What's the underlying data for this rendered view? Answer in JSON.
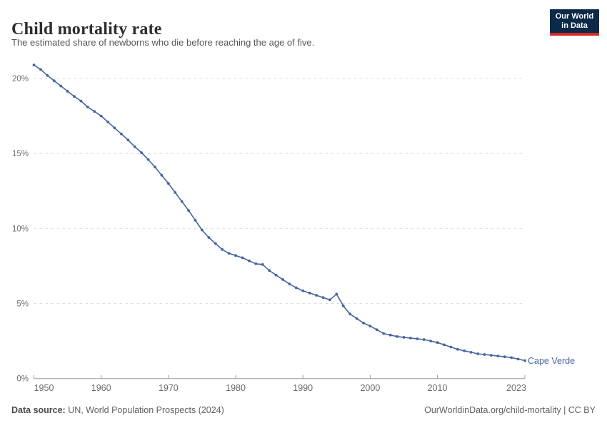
{
  "header": {
    "title": "Child mortality rate",
    "subtitle": "The estimated share of newborns who die before reaching the age of five.",
    "logo": {
      "line1": "Our World",
      "line2": "in Data",
      "bg_color": "#0b2948",
      "accent_color": "#d52b28"
    }
  },
  "footer": {
    "source_label": "Data source:",
    "source_text": " UN, World Population Prospects (2024)",
    "citation": "OurWorldinData.org/child-mortality | CC BY"
  },
  "chart_data": {
    "type": "line",
    "title": "Child mortality rate",
    "subtitle": "The estimated share of newborns who die before reaching the age of five.",
    "entity_label": "Cape Verde",
    "unit": "%",
    "xlabel": "",
    "ylabel": "",
    "xlim": [
      1950,
      2023
    ],
    "ylim": [
      0,
      21
    ],
    "grid": "horizontal-dashed",
    "legend_position": "end-of-line",
    "line_color": "#4565A0",
    "marker": "circle",
    "y_ticks": [
      {
        "value": 0,
        "label": "0%"
      },
      {
        "value": 5,
        "label": "5%"
      },
      {
        "value": 10,
        "label": "10%"
      },
      {
        "value": 15,
        "label": "15%"
      },
      {
        "value": 20,
        "label": "20%"
      }
    ],
    "x_ticks": [
      {
        "year": 1950,
        "label": "1950"
      },
      {
        "year": 1960,
        "label": "1960"
      },
      {
        "year": 1970,
        "label": "1970"
      },
      {
        "year": 1980,
        "label": "1980"
      },
      {
        "year": 1990,
        "label": "1990"
      },
      {
        "year": 2000,
        "label": "2000"
      },
      {
        "year": 2010,
        "label": "2010"
      },
      {
        "year": 2023,
        "label": "2023"
      }
    ],
    "series": [
      {
        "name": "Cape Verde",
        "color": "#4565A0",
        "years": [
          1950,
          1951,
          1952,
          1953,
          1954,
          1955,
          1956,
          1957,
          1958,
          1959,
          1960,
          1961,
          1962,
          1963,
          1964,
          1965,
          1966,
          1967,
          1968,
          1969,
          1970,
          1971,
          1972,
          1973,
          1974,
          1975,
          1976,
          1977,
          1978,
          1979,
          1980,
          1981,
          1982,
          1983,
          1984,
          1985,
          1986,
          1987,
          1988,
          1989,
          1990,
          1991,
          1992,
          1993,
          1994,
          1995,
          1996,
          1997,
          1998,
          1999,
          2000,
          2001,
          2002,
          2003,
          2004,
          2005,
          2006,
          2007,
          2008,
          2009,
          2010,
          2011,
          2012,
          2013,
          2014,
          2015,
          2016,
          2017,
          2018,
          2019,
          2020,
          2021,
          2022,
          2023
        ],
        "values": [
          20.9,
          20.6,
          20.2,
          19.85,
          19.5,
          19.15,
          18.8,
          18.5,
          18.1,
          17.8,
          17.5,
          17.1,
          16.7,
          16.3,
          15.9,
          15.45,
          15.05,
          14.6,
          14.1,
          13.55,
          13.0,
          12.4,
          11.8,
          11.2,
          10.55,
          9.9,
          9.4,
          9.0,
          8.6,
          8.35,
          8.2,
          8.05,
          7.85,
          7.65,
          7.6,
          7.2,
          6.9,
          6.6,
          6.3,
          6.05,
          5.85,
          5.7,
          5.55,
          5.4,
          5.25,
          5.63,
          4.85,
          4.3,
          4.0,
          3.7,
          3.5,
          3.25,
          3.0,
          2.9,
          2.8,
          2.75,
          2.7,
          2.65,
          2.6,
          2.5,
          2.4,
          2.25,
          2.1,
          1.95,
          1.85,
          1.75,
          1.65,
          1.6,
          1.55,
          1.5,
          1.45,
          1.4,
          1.3,
          1.2
        ]
      }
    ]
  }
}
